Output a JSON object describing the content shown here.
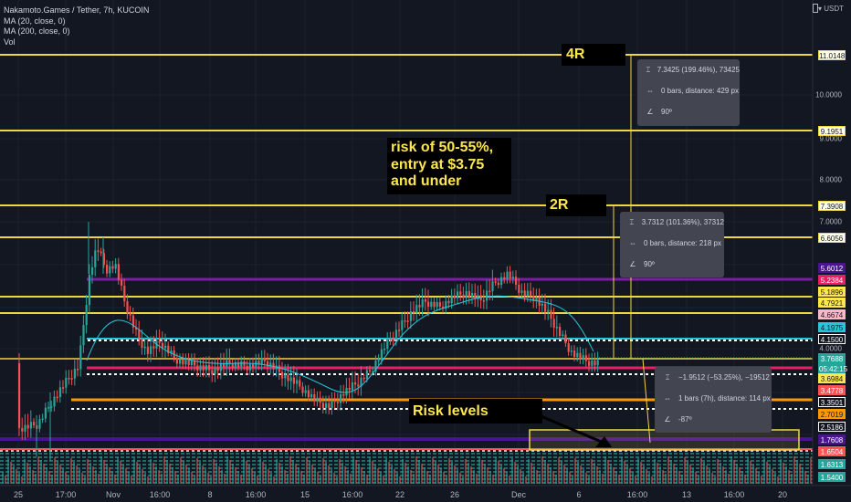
{
  "header": {
    "symbol_line": "Nakamoto.Games / Tether, 7h, KUCOIN",
    "indicators": [
      "MA (20, close, 0)",
      "MA (200, close, 0)",
      "Vol"
    ],
    "currency": "USDT"
  },
  "annotations": {
    "risk_note": "risk of 50-55%,\nentry at $3.75\nand under",
    "r4": "4R",
    "r2": "2R",
    "risk_levels": "Risk levels"
  },
  "measure_tooltips": [
    {
      "name": "measure-4r",
      "lines": [
        "7.3425 (199.46%), 73425",
        "0 bars, distance: 429 px",
        "90º"
      ]
    },
    {
      "name": "measure-2r",
      "lines": [
        "3.7312 (101.36%), 37312",
        "0 bars, distance: 218 px",
        "90º"
      ]
    },
    {
      "name": "measure-risk",
      "lines": [
        "−1.9512 (−53.25%), −19512",
        "1 bars (7h), distance: 114 px",
        "-87º"
      ]
    }
  ],
  "price_axis_ticks": [
    "10.0000",
    "9.0000",
    "8.0000",
    "7.0000",
    "4.0000"
  ],
  "price_labels": [
    {
      "text": "11.0148",
      "bg": "#fffde7",
      "fg": "#131722",
      "border": "#f0d641"
    },
    {
      "text": "9.1951",
      "bg": "#fffde7",
      "fg": "#131722",
      "border": "#f0d641"
    },
    {
      "text": "7.3908",
      "bg": "#fffde7",
      "fg": "#131722",
      "border": "#f0d641"
    },
    {
      "text": "6.6056",
      "bg": "#fffde7",
      "fg": "#131722",
      "border": "#f0d641"
    },
    {
      "text": "5.6012",
      "bg": "#4a148c",
      "fg": "#ffffff",
      "border": "#4a148c"
    },
    {
      "text": "5.2384",
      "bg": "#e91e63",
      "fg": "#ffffff",
      "border": "#e91e63"
    },
    {
      "text": "5.1896",
      "bg": "#fde74c",
      "fg": "#131722",
      "border": "#fde74c"
    },
    {
      "text": "4.7921",
      "bg": "#fde74c",
      "fg": "#131722",
      "border": "#fde74c"
    },
    {
      "text": "4.6674",
      "bg": "#ffb8c6",
      "fg": "#131722",
      "border": "#ffb8c6"
    },
    {
      "text": "4.1975",
      "bg": "#26c6da",
      "fg": "#131722",
      "border": "#26c6da"
    },
    {
      "text": "4.1500",
      "bg": "#131722",
      "fg": "#ffffff",
      "border": "#ffffff"
    },
    {
      "text": "3.7688",
      "bg": "#26a69a",
      "fg": "#ffffff",
      "border": "#26a69a"
    },
    {
      "text": "05:42:15",
      "bg": "#26a69a",
      "fg": "#ffffff",
      "border": "#26a69a"
    },
    {
      "text": "3.6984",
      "bg": "#fde74c",
      "fg": "#131722",
      "border": "#fde74c"
    },
    {
      "text": "3.4778",
      "bg": "#ff5252",
      "fg": "#ffffff",
      "border": "#ff5252"
    },
    {
      "text": "3.3501",
      "bg": "#131722",
      "fg": "#ffffff",
      "border": "#ffffff"
    },
    {
      "text": "2.7019",
      "bg": "#ff9800",
      "fg": "#131722",
      "border": "#ff9800"
    },
    {
      "text": "2.5186",
      "bg": "#131722",
      "fg": "#ffffff",
      "border": "#ffffff"
    },
    {
      "text": "1.7608",
      "bg": "#4a148c",
      "fg": "#ffffff",
      "border": "#4a148c"
    },
    {
      "text": "1.6504",
      "bg": "#ff5252",
      "fg": "#ffffff",
      "border": "#ff5252"
    },
    {
      "text": "1.6313",
      "bg": "#26a69a",
      "fg": "#ffffff",
      "border": "#26a69a"
    },
    {
      "text": "1.5400",
      "bg": "#26a69a",
      "fg": "#ffffff",
      "border": "#26a69a"
    }
  ],
  "time_axis": [
    "25",
    "17:00",
    "Nov",
    "16:00",
    "8",
    "16:00",
    "15",
    "16:00",
    "22",
    "26",
    "Dec",
    "6",
    "16:00",
    "13",
    "16:00",
    "20"
  ],
  "colors": {
    "background": "#131722",
    "up": "#26a69a",
    "down": "#ef5350",
    "level_yellow": "#f0d641",
    "ma20": "#26c6da",
    "annotation_bg": "#000000",
    "annotation_text": "#fde74c"
  }
}
